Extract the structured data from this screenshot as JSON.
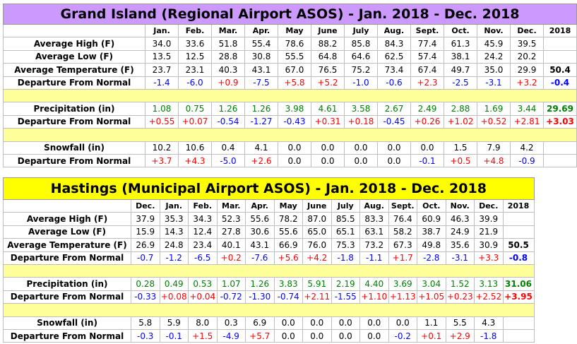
{
  "tables": [
    {
      "title": "Grand Island (Regional Airport ASOS) - Jan. 2018 - Dec. 2018",
      "title_bg": "#cc99ff",
      "months": [
        "Jan.",
        "Feb.",
        "Mar.",
        "Apr.",
        "May",
        "June",
        "July",
        "Aug.",
        "Sept.",
        "Oct.",
        "Nov.",
        "Dec.",
        "2018"
      ],
      "rows": [
        {
          "label": "Average High (F)",
          "values": [
            "34.0",
            "33.6",
            "51.8",
            "55.4",
            "78.6",
            "88.2",
            "85.8",
            "84.3",
            "77.4",
            "61.3",
            "45.9",
            "39.5",
            ""
          ],
          "color": "blk"
        },
        {
          "label": "Average Low (F)",
          "values": [
            "13.5",
            "12.5",
            "28.8",
            "30.8",
            "55.5",
            "64.8",
            "64.6",
            "62.5",
            "57.4",
            "38.1",
            "24.2",
            "20.2",
            ""
          ],
          "color": "blk"
        },
        {
          "label": "Average Temperature (F)",
          "values": [
            "23.7",
            "23.1",
            "40.3",
            "43.1",
            "67.0",
            "76.5",
            "75.2",
            "73.4",
            "67.4",
            "49.7",
            "35.0",
            "29.9",
            "50.4"
          ],
          "color": "blk"
        },
        {
          "label": "Departure From Normal",
          "values": [
            "-1.4",
            "-6.0",
            "+0.9",
            "-7.5",
            "+5.8",
            "+5.2",
            "-1.0",
            "-0.6",
            "+2.3",
            "-2.5",
            "-3.1",
            "+3.2",
            "-0.4"
          ],
          "color": "dep"
        },
        {
          "spacer": true
        },
        {
          "label": "Precipitation (in)",
          "values": [
            "1.08",
            "0.75",
            "1.26",
            "1.26",
            "3.98",
            "4.61",
            "3.58",
            "2.67",
            "2.49",
            "2.88",
            "1.69",
            "3.44",
            "29.69"
          ],
          "color": "grn"
        },
        {
          "label": "Departure From Normal",
          "values": [
            "+0.55",
            "+0.07",
            "-0.54",
            "-1.27",
            "-0.43",
            "+0.31",
            "+0.18",
            "-0.45",
            "+0.26",
            "+1.02",
            "+0.52",
            "+2.81",
            "+3.03"
          ],
          "color": "dep"
        },
        {
          "spacer": true
        },
        {
          "label": "Snowfall (in)",
          "values": [
            "10.2",
            "10.6",
            "0.4",
            "4.1",
            "0.0",
            "0.0",
            "0.0",
            "0.0",
            "0.0",
            "1.5",
            "7.9",
            "4.2",
            ""
          ],
          "color": "blk"
        },
        {
          "label": "Departure From Normal",
          "values": [
            "+3.7",
            "+4.3",
            "-5.0",
            "+2.6",
            "0.0",
            "0.0",
            "0.0",
            "0.0",
            "-0.1",
            "+0.5",
            "+4.8",
            "-0.9",
            ""
          ],
          "color": "dep"
        }
      ]
    },
    {
      "title": "Hastings (Municipal Airport ASOS) - Jan. 2018 - Dec. 2018",
      "title_bg": "#ffff00",
      "months": [
        "Dec.",
        "Jan.",
        "Feb.",
        "Mar.",
        "Apr.",
        "May",
        "June",
        "July",
        "Aug.",
        "Sept.",
        "Oct.",
        "Nov.",
        "Dec.",
        "2018"
      ],
      "rows": [
        {
          "label": "Average High (F)",
          "values": [
            "37.9",
            "35.3",
            "34.3",
            "52.3",
            "55.6",
            "78.2",
            "87.0",
            "85.5",
            "83.3",
            "76.4",
            "60.9",
            "46.3",
            "39.9",
            ""
          ],
          "color": "blk"
        },
        {
          "label": "Average Low (F)",
          "values": [
            "15.9",
            "14.3",
            "12.4",
            "27.8",
            "30.6",
            "55.6",
            "65.0",
            "65.1",
            "63.1",
            "58.2",
            "38.7",
            "24.9",
            "21.9",
            ""
          ],
          "color": "blk"
        },
        {
          "label": "Average Temperature (F)",
          "values": [
            "26.9",
            "24.8",
            "23.4",
            "40.1",
            "43.1",
            "66.9",
            "76.0",
            "75.3",
            "73.2",
            "67.3",
            "49.8",
            "35.6",
            "30.9",
            "50.5"
          ],
          "color": "blk"
        },
        {
          "label": "Departure From Normal",
          "values": [
            "-0.7",
            "-1.2",
            "-6.5",
            "+0.2",
            "-7.6",
            "+5.6",
            "+4.2",
            "-1.8",
            "-1.1",
            "+1.7",
            "-2.8",
            "-3.1",
            "+3.3",
            "-0.8"
          ],
          "color": "dep"
        },
        {
          "spacer": true
        },
        {
          "label": "Precipitation (in)",
          "values": [
            "0.28",
            "0.49",
            "0.53",
            "1.07",
            "1.26",
            "3.83",
            "5.91",
            "2.19",
            "4.40",
            "3.69",
            "3.04",
            "1.52",
            "3.13",
            "31.06"
          ],
          "color": "grn"
        },
        {
          "label": "Departure From Normal",
          "values": [
            "-0.33",
            "+0.08",
            "+0.04",
            "-0.72",
            "-1.30",
            "-0.74",
            "+2.11",
            "-1.55",
            "+1.10",
            "+1.13",
            "+1.05",
            "+0.23",
            "+2.52",
            "+3.95"
          ],
          "color": "dep"
        },
        {
          "spacer": true
        },
        {
          "label": "Snowfall (in)",
          "values": [
            "5.8",
            "5.9",
            "8.0",
            "0.3",
            "6.9",
            "0.0",
            "0.0",
            "0.0",
            "0.0",
            "0.0",
            "1.1",
            "5.5",
            "4.3",
            ""
          ],
          "color": "blk"
        },
        {
          "label": "Departure From Normal",
          "values": [
            "-0.3",
            "-0.1",
            "+1.5",
            "-4.9",
            "+5.7",
            "0.0",
            "0.0",
            "0.0",
            "0.0",
            "-0.2",
            "+0.1",
            "+2.9",
            "-1.8",
            ""
          ],
          "color": "dep"
        }
      ]
    }
  ]
}
